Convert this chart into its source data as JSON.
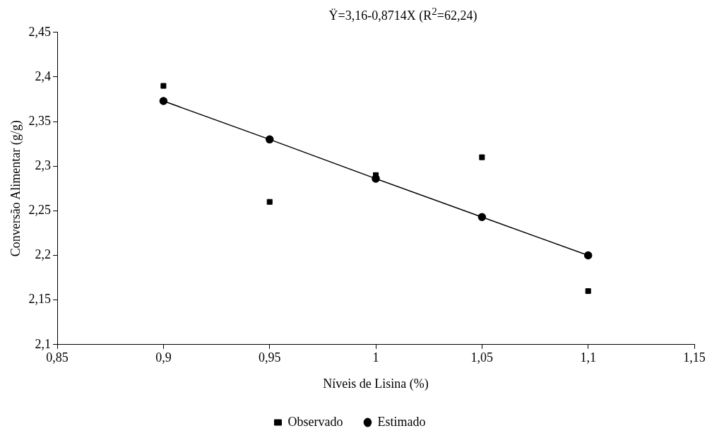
{
  "chart_data": {
    "type": "line",
    "title": "Ÿ=3,16-0,8714X (R$^{2}$=62,24)",
    "xlabel": "Níveis de Lisina (%)",
    "ylabel": "Conversão Alimentar (g/g)",
    "x": [
      0.9,
      0.95,
      1.0,
      1.05,
      1.1
    ],
    "series": [
      {
        "name": "Estimado",
        "type": "line",
        "color": "#000000",
        "marker": "circle",
        "line_style": "solid",
        "values": [
          2.373,
          2.33,
          2.286,
          2.243,
          2.2
        ]
      },
      {
        "name": "Observado",
        "type": "scatter",
        "color": "#000000",
        "marker": "square",
        "values": [
          2.39,
          2.26,
          2.29,
          2.31,
          2.16
        ]
      }
    ],
    "xlim": [
      0.85,
      1.15
    ],
    "xticks": [
      {
        "value": 0.85,
        "label": "0,85"
      },
      {
        "value": 0.9,
        "label": "0,9"
      },
      {
        "value": 0.95,
        "label": "0,95"
      },
      {
        "value": 1,
        "label": "1"
      },
      {
        "value": 1.05,
        "label": "1,05"
      },
      {
        "value": 1.1,
        "label": "1,1"
      },
      {
        "value": 1.15,
        "label": "1,15"
      }
    ],
    "ylim": [
      2.1,
      2.45
    ],
    "yticks": [
      {
        "value": 2.1,
        "label": "2,1"
      },
      {
        "value": 2.15,
        "label": "2,15"
      },
      {
        "value": 2.2,
        "label": "2,2"
      },
      {
        "value": 2.25,
        "label": "2,25"
      },
      {
        "value": 2.3,
        "label": "2,3"
      },
      {
        "value": 2.35,
        "label": "2,35"
      },
      {
        "value": 2.4,
        "label": "2,4"
      },
      {
        "value": 2.45,
        "label": "2,45"
      }
    ],
    "grid": false,
    "legend": "bottom"
  }
}
